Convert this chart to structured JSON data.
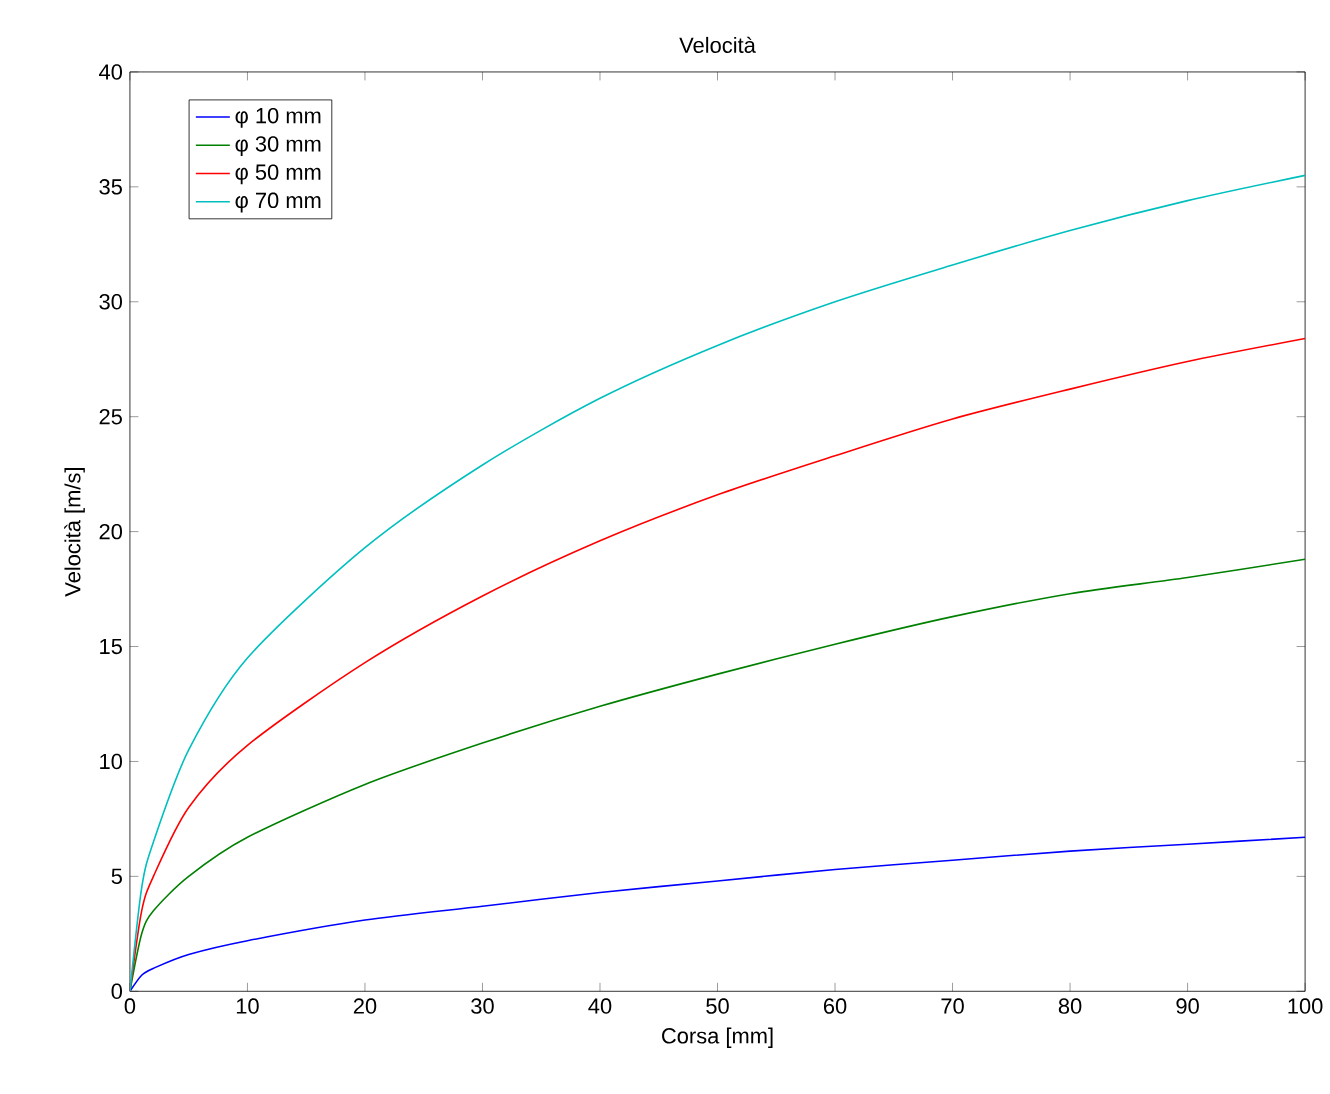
{
  "chart_data": {
    "type": "line",
    "title": "Velocità",
    "xlabel": "Corsa [mm]",
    "ylabel": "Velocità [m/s]",
    "xlim": [
      0,
      100
    ],
    "ylim": [
      0,
      40
    ],
    "xticks": [
      0,
      10,
      20,
      30,
      40,
      50,
      60,
      70,
      80,
      90,
      100
    ],
    "yticks": [
      0,
      5,
      10,
      15,
      20,
      25,
      30,
      35,
      40
    ],
    "grid": false,
    "legend": "top left",
    "marker": "none",
    "line_style": "solid",
    "x": [
      0,
      1,
      2,
      5,
      10,
      20,
      30,
      40,
      50,
      60,
      70,
      80,
      90,
      100
    ],
    "series": [
      {
        "name": "φ 10 mm",
        "color": "#0000ff",
        "values": [
          0,
          0.7,
          1.0,
          1.6,
          2.2,
          3.1,
          3.7,
          4.3,
          4.8,
          5.3,
          5.7,
          6.1,
          6.4,
          6.7
        ]
      },
      {
        "name": "φ 30 mm",
        "color": "#008000",
        "values": [
          0,
          2.5,
          3.5,
          5.0,
          6.7,
          9.0,
          10.8,
          12.4,
          13.8,
          15.1,
          16.3,
          17.3,
          18.0,
          18.8
        ]
      },
      {
        "name": "φ 50 mm",
        "color": "#ff0000",
        "values": [
          0,
          3.5,
          5.0,
          8.0,
          10.7,
          14.3,
          17.2,
          19.6,
          21.6,
          23.3,
          24.9,
          26.2,
          27.4,
          28.4
        ]
      },
      {
        "name": "φ 70 mm",
        "color": "#00bfbf",
        "values": [
          0,
          4.5,
          6.5,
          10.5,
          14.5,
          19.3,
          22.9,
          25.8,
          28.1,
          30.0,
          31.6,
          33.1,
          34.4,
          35.5
        ]
      }
    ]
  }
}
